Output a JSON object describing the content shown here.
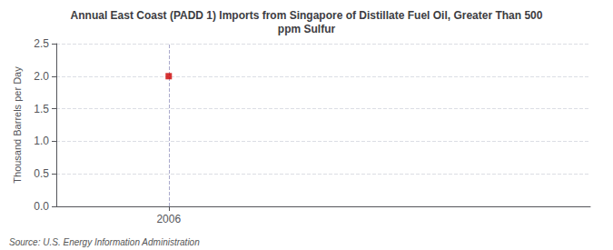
{
  "chart_data": {
    "type": "scatter",
    "title": "Annual East Coast (PADD 1) Imports from Singapore of Distillate Fuel Oil, Greater Than 500\nppm Sulfur",
    "ylabel": "Thousand Barrels per Day",
    "source": "Source: U.S. Energy Information Administration",
    "x": [
      2006
    ],
    "values": [
      2.0
    ],
    "color": "#cc0000",
    "marker": "square",
    "xlim": [
      2005.6,
      2007.5
    ],
    "xticks": [
      2006
    ],
    "ylim": [
      0.0,
      2.5
    ],
    "yticks": [
      {
        "value": 0.0,
        "label": "0.0"
      },
      0.5,
      {
        "value": 1.0,
        "label": "1.0"
      },
      1.5,
      {
        "value": 2.0,
        "label": "2.0"
      },
      2.5
    ],
    "grid": true,
    "reference_line": {
      "x": 2006,
      "color": "#aaaacc",
      "line_style": "dashed"
    }
  }
}
